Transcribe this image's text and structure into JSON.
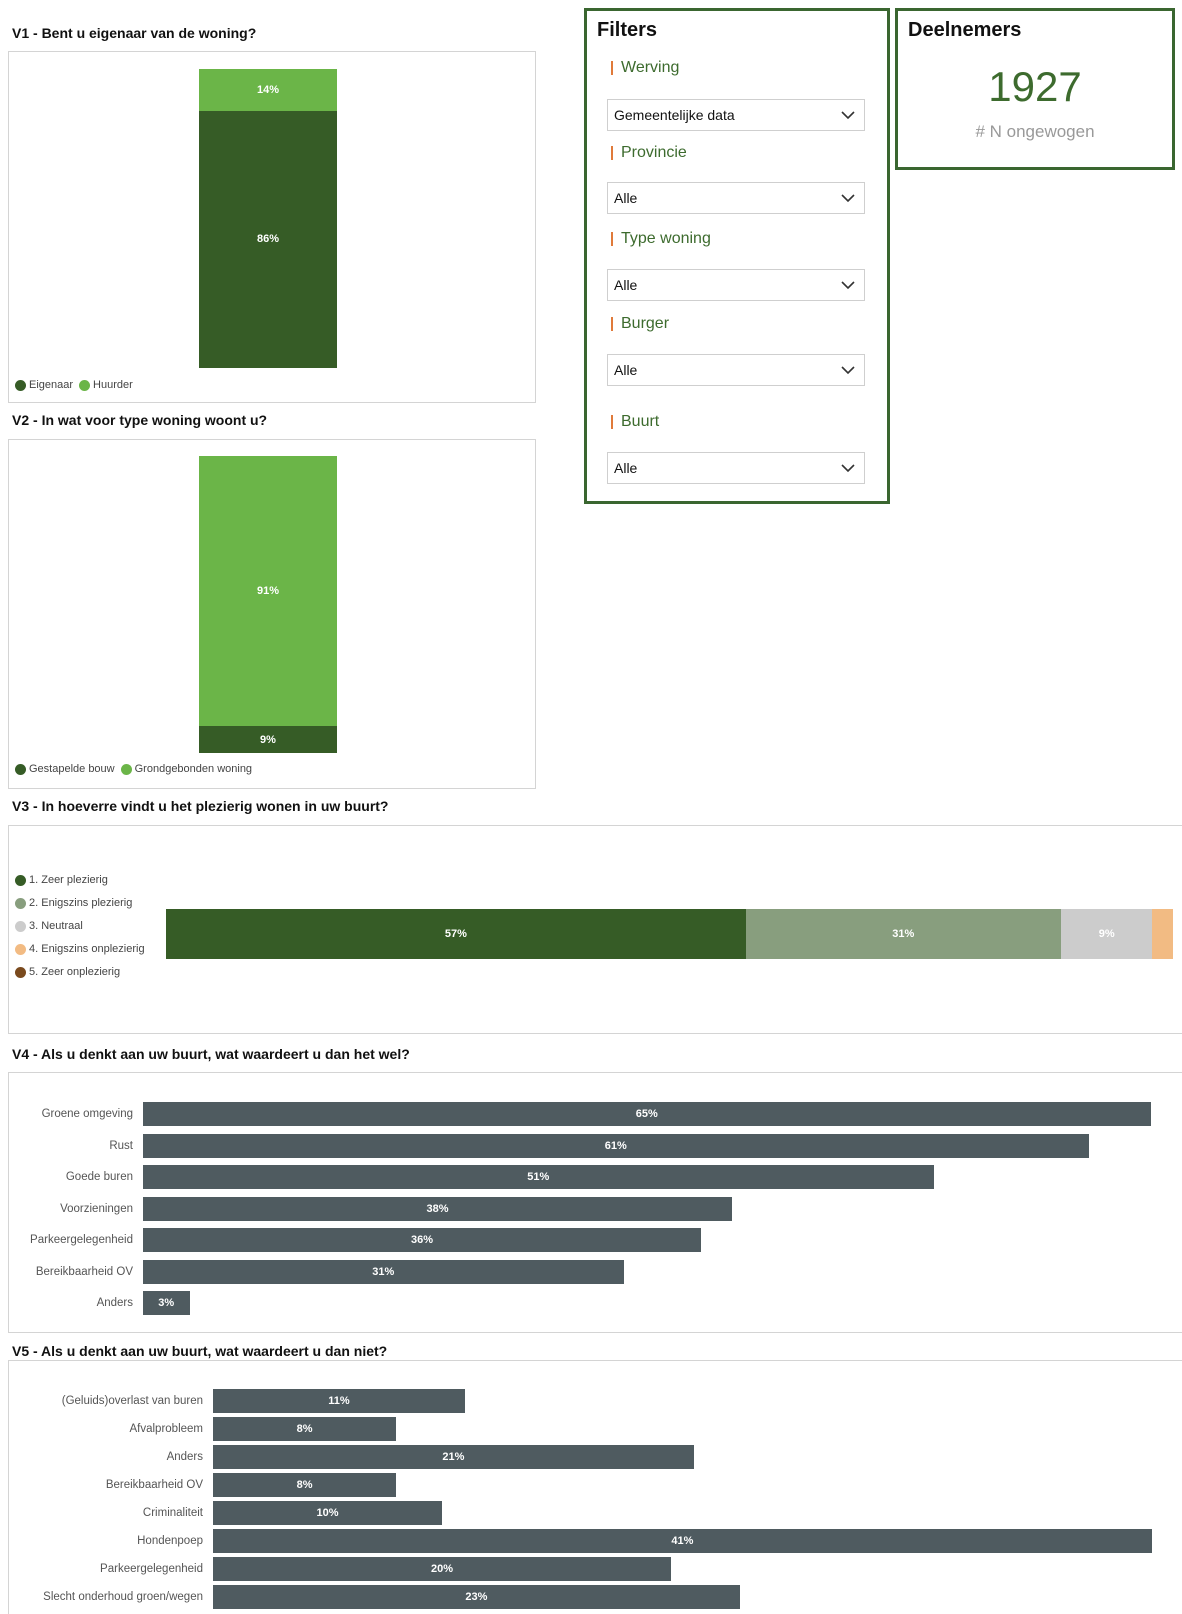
{
  "v1": {
    "title": "V1 - Bent u eigenaar van de woning?",
    "legend": [
      {
        "label": "Eigenaar",
        "color": "#365c26"
      },
      {
        "label": "Huurder",
        "color": "#6bb548"
      }
    ],
    "segments": [
      {
        "label": "14%",
        "value": 14,
        "color": "#6bb548"
      },
      {
        "label": "86%",
        "value": 86,
        "color": "#365c26"
      }
    ]
  },
  "v2": {
    "title": "V2 - In wat voor type woning woont u?",
    "legend": [
      {
        "label": "Gestapelde bouw",
        "color": "#365c26"
      },
      {
        "label": "Grondgebonden woning",
        "color": "#6bb548"
      }
    ],
    "segments": [
      {
        "label": "91%",
        "value": 91,
        "color": "#6bb548"
      },
      {
        "label": "9%",
        "value": 9,
        "color": "#365c26"
      }
    ]
  },
  "v3": {
    "title": "V3 - In hoeverre vindt u het plezierig wonen in uw buurt?",
    "legend": [
      {
        "label": "1. Zeer plezierig",
        "color": "#365c26"
      },
      {
        "label": "2. Enigszins plezierig",
        "color": "#889e7e"
      },
      {
        "label": "3. Neutraal",
        "color": "#cccccc"
      },
      {
        "label": "4. Enigszins onplezierig",
        "color": "#f2bb83"
      },
      {
        "label": "5. Zeer onplezierig",
        "color": "#7a4a1e"
      }
    ],
    "segments": [
      {
        "label": "57%",
        "value": 57,
        "color": "#365c26"
      },
      {
        "label": "31%",
        "value": 31,
        "color": "#889e7e"
      },
      {
        "label": "9%",
        "value": 9,
        "color": "#cccccc"
      },
      {
        "label": "",
        "value": 2,
        "color": "#f2bb83"
      }
    ]
  },
  "v4": {
    "title": "V4 - Als u denkt aan uw buurt, wat waardeert u dan het wel?",
    "bar_color": "#4f5b60",
    "rows": [
      {
        "label": "Groene omgeving",
        "value": 65,
        "text": "65%"
      },
      {
        "label": "Rust",
        "value": 61,
        "text": "61%"
      },
      {
        "label": "Goede buren",
        "value": 51,
        "text": "51%"
      },
      {
        "label": "Voorzieningen",
        "value": 38,
        "text": "38%"
      },
      {
        "label": "Parkeergelegenheid",
        "value": 36,
        "text": "36%"
      },
      {
        "label": "Bereikbaarheid OV",
        "value": 31,
        "text": "31%"
      },
      {
        "label": "Anders",
        "value": 3,
        "text": "3%"
      }
    ]
  },
  "v5": {
    "title": "V5 - Als u denkt aan uw buurt, wat waardeert u dan niet?",
    "bar_color": "#4f5b60",
    "rows": [
      {
        "label": "(Geluids)overlast van buren",
        "value": 11,
        "text": "11%"
      },
      {
        "label": "Afvalprobleem",
        "value": 8,
        "text": "8%"
      },
      {
        "label": "Anders",
        "value": 21,
        "text": "21%"
      },
      {
        "label": "Bereikbaarheid OV",
        "value": 8,
        "text": "8%"
      },
      {
        "label": "Criminaliteit",
        "value": 10,
        "text": "10%"
      },
      {
        "label": "Hondenpoep",
        "value": 41,
        "text": "41%"
      },
      {
        "label": "Parkeergelegenheid",
        "value": 20,
        "text": "20%"
      },
      {
        "label": "Slecht onderhoud groen/wegen",
        "value": 23,
        "text": "23%"
      }
    ]
  },
  "filters": {
    "title": "Filters",
    "items": [
      {
        "label": "Werving",
        "value": "Gemeentelijke data"
      },
      {
        "label": "Provincie",
        "value": "Alle"
      },
      {
        "label": "Type woning",
        "value": "Alle"
      },
      {
        "label": "Burger",
        "value": "Alle"
      },
      {
        "label": "Buurt",
        "value": "Alle"
      }
    ]
  },
  "deelnemers": {
    "title": "Deelnemers",
    "value": "1927",
    "caption": "# N ongewogen"
  },
  "chart_data": [
    {
      "type": "bar",
      "title": "V1 - Bent u eigenaar van de woning?",
      "stacked": true,
      "categories": [
        ""
      ],
      "series": [
        {
          "name": "Eigenaar",
          "values": [
            86
          ]
        },
        {
          "name": "Huurder",
          "values": [
            14
          ]
        }
      ]
    },
    {
      "type": "bar",
      "title": "V2 - In wat voor type woning woont u?",
      "stacked": true,
      "categories": [
        ""
      ],
      "series": [
        {
          "name": "Gestapelde bouw",
          "values": [
            9
          ]
        },
        {
          "name": "Grondgebonden woning",
          "values": [
            91
          ]
        }
      ]
    },
    {
      "type": "bar",
      "title": "V3 - In hoeverre vindt u het plezierig wonen in uw buurt?",
      "stacked": true,
      "orientation": "horizontal",
      "categories": [
        ""
      ],
      "series": [
        {
          "name": "1. Zeer plezierig",
          "values": [
            57
          ]
        },
        {
          "name": "2. Enigszins plezierig",
          "values": [
            31
          ]
        },
        {
          "name": "3. Neutraal",
          "values": [
            9
          ]
        },
        {
          "name": "4. Enigszins onplezierig",
          "values": [
            2
          ]
        },
        {
          "name": "5. Zeer onplezierig",
          "values": [
            0
          ]
        }
      ]
    },
    {
      "type": "bar",
      "orientation": "horizontal",
      "title": "V4 - Als u denkt aan uw buurt, wat waardeert u dan het wel?",
      "categories": [
        "Groene omgeving",
        "Rust",
        "Goede buren",
        "Voorzieningen",
        "Parkeergelegenheid",
        "Bereikbaarheid OV",
        "Anders"
      ],
      "values": [
        65,
        61,
        51,
        38,
        36,
        31,
        3
      ]
    },
    {
      "type": "bar",
      "orientation": "horizontal",
      "title": "V5 - Als u denkt aan uw buurt, wat waardeert u dan niet?",
      "categories": [
        "(Geluids)overlast van buren",
        "Afvalprobleem",
        "Anders",
        "Bereikbaarheid OV",
        "Criminaliteit",
        "Hondenpoep",
        "Parkeergelegenheid",
        "Slecht onderhoud groen/wegen"
      ],
      "values": [
        11,
        8,
        21,
        8,
        10,
        41,
        20,
        23
      ]
    }
  ]
}
